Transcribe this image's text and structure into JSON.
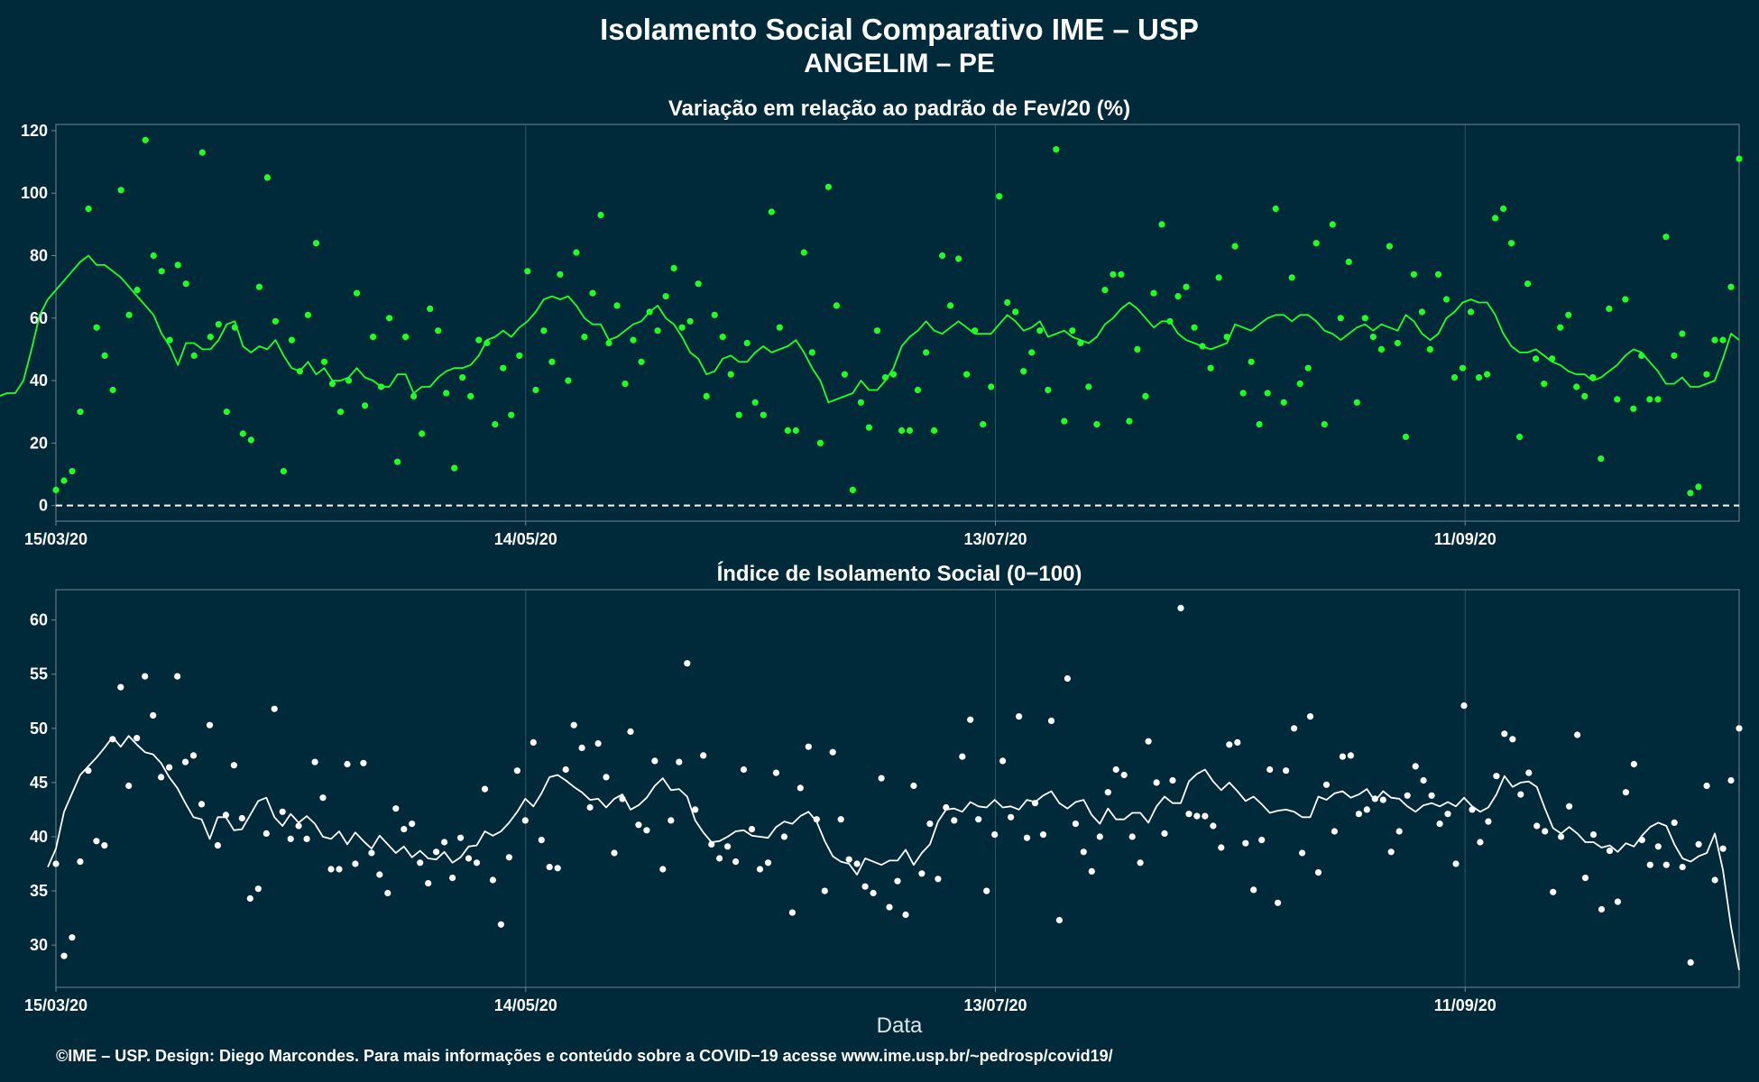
{
  "title": "Isolamento Social Comparativo IME – USP",
  "subtitle": "ANGELIM – PE",
  "xlabel": "Data",
  "credit": "©IME – USP. Design: Diego Marcondes. Para mais informações e conteúdo sobre a COVID−19 acesse www.ime.usp.br/~pedrosp/covid19/",
  "colors": {
    "background": "#00293a",
    "panel_border": "#6f8893",
    "grid": "#2f5566",
    "top_series": "#22ff22",
    "bottom_series": "#ffffff"
  },
  "chart_data": [
    {
      "type": "scatter",
      "title": "Variação em relação ao padrão de Fev/20 (%)",
      "x_type": "date",
      "x_range": [
        "2020-03-15",
        "2020-10-16"
      ],
      "x_ticks": [
        "2020-03-15",
        "2020-05-14",
        "2020-07-13",
        "2020-09-11"
      ],
      "x_tick_labels": [
        "15/03/20",
        "14/05/20",
        "13/07/20",
        "11/09/20"
      ],
      "ylim": [
        -5,
        122
      ],
      "y_ticks": [
        0,
        20,
        40,
        60,
        80,
        100,
        120
      ],
      "reference_line": 0,
      "grid": true,
      "series": [
        {
          "type": "points",
          "values": [
            5,
            8,
            11,
            30,
            95,
            57,
            48,
            37,
            101,
            61,
            69,
            117,
            80,
            75,
            53,
            77,
            71,
            48,
            113,
            54,
            58,
            30,
            57,
            23,
            21,
            70,
            105,
            59,
            11,
            53,
            43,
            61,
            84,
            46,
            39,
            30,
            40,
            68,
            32,
            54,
            38,
            60,
            14,
            54,
            35,
            23,
            63,
            56,
            36,
            12,
            41,
            35,
            53,
            52,
            26,
            44,
            29,
            48,
            75,
            37,
            56,
            46,
            74,
            40,
            81,
            54,
            68,
            93,
            52,
            64,
            39,
            53,
            46,
            62,
            56,
            67,
            76,
            57,
            59,
            71,
            35,
            61,
            54,
            42,
            29,
            52,
            33,
            29,
            94,
            57,
            24,
            24,
            81,
            49,
            20,
            102,
            64,
            42,
            5,
            33,
            25,
            56,
            41,
            42,
            24,
            24,
            37,
            49,
            24,
            80,
            64,
            79,
            42,
            56,
            26,
            38,
            99,
            65,
            62,
            43,
            49,
            56,
            37,
            114,
            27,
            56,
            52,
            38,
            26,
            69,
            74,
            74,
            27,
            50,
            35,
            68,
            90,
            59,
            67,
            70,
            57,
            51,
            44,
            73,
            54,
            83,
            36,
            46,
            26,
            36,
            95,
            33,
            73,
            39,
            44,
            84,
            26,
            90,
            60,
            78,
            33,
            60,
            54,
            50,
            83,
            52,
            22,
            74,
            62,
            50,
            74,
            66,
            41,
            44,
            62,
            41,
            42,
            92,
            95,
            84,
            22,
            71,
            47,
            39,
            47,
            57,
            61,
            38,
            35,
            41,
            15,
            63,
            34,
            66,
            31,
            48,
            34,
            34,
            86,
            48,
            55,
            4,
            6,
            42,
            53,
            53,
            70,
            111
          ]
        },
        {
          "type": "line",
          "values": [
            27,
            35,
            36,
            36,
            40,
            50,
            61,
            66,
            69,
            72,
            75,
            78,
            80,
            77,
            77,
            75,
            73,
            70,
            67,
            64,
            61,
            55,
            51,
            45,
            52,
            52,
            50,
            50,
            53,
            58,
            59,
            51,
            49,
            51,
            50,
            53,
            48,
            44,
            43,
            46,
            42,
            44,
            40,
            40,
            41,
            44,
            41,
            40,
            38,
            38,
            42,
            42,
            36,
            38,
            38,
            41,
            43,
            44,
            44,
            45,
            48,
            53,
            54,
            56,
            54,
            57,
            59,
            62,
            66,
            67,
            66,
            67,
            64,
            60,
            58,
            58,
            53,
            54,
            56,
            58,
            59,
            62,
            64,
            60,
            58,
            54,
            49,
            47,
            42,
            43,
            47,
            48,
            46,
            46,
            49,
            51,
            49,
            50,
            51,
            53,
            49,
            44,
            40,
            33,
            34,
            35,
            36,
            40,
            37,
            37,
            40,
            44,
            51,
            54,
            56,
            59,
            56,
            55,
            57,
            59,
            57,
            55,
            55,
            55,
            58,
            61,
            59,
            56,
            57,
            59,
            54,
            55,
            56,
            54,
            53,
            52,
            54,
            58,
            60,
            63,
            65,
            63,
            60,
            57,
            59,
            59,
            55,
            53,
            52,
            51,
            50,
            51,
            52,
            58,
            57,
            56,
            58,
            60,
            61,
            61,
            59,
            61,
            61,
            59,
            56,
            55,
            53,
            55,
            57,
            58,
            56,
            58,
            57,
            56,
            61,
            59,
            55,
            53,
            55,
            60,
            62,
            65,
            66,
            65,
            65,
            61,
            55,
            51,
            49,
            49,
            50,
            48,
            46,
            45,
            43,
            42,
            42,
            40,
            41,
            43,
            45,
            48,
            50,
            49,
            46,
            43,
            39,
            39,
            41,
            38,
            38,
            39,
            40,
            47,
            55,
            53
          ]
        }
      ]
    },
    {
      "type": "scatter",
      "title": "Índice de Isolamento Social (0−100)",
      "x_type": "date",
      "x_range": [
        "2020-03-15",
        "2020-10-16"
      ],
      "x_ticks": [
        "2020-03-15",
        "2020-05-14",
        "2020-07-13",
        "2020-09-11"
      ],
      "x_tick_labels": [
        "15/03/20",
        "14/05/20",
        "13/07/20",
        "11/09/20"
      ],
      "ylim": [
        26.1,
        62.8
      ],
      "y_ticks": [
        30,
        35,
        40,
        45,
        50,
        55,
        60
      ],
      "xlabel": "Data",
      "grid": true,
      "series": [
        {
          "type": "points",
          "values": [
            37.5,
            29.0,
            30.7,
            37.7,
            46.1,
            39.6,
            39.2,
            49.0,
            53.8,
            44.7,
            49.1,
            54.8,
            51.2,
            45.5,
            46.4,
            54.8,
            46.9,
            47.5,
            43.0,
            50.3,
            39.2,
            42.0,
            46.6,
            41.7,
            34.3,
            35.2,
            40.3,
            51.8,
            42.3,
            39.8,
            41.0,
            39.8,
            46.9,
            43.6,
            37.0,
            37.0,
            46.7,
            37.5,
            46.8,
            38.5,
            36.5,
            34.8,
            42.6,
            40.7,
            41.2,
            37.6,
            35.7,
            38.6,
            39.5,
            36.2,
            39.9,
            38.0,
            37.6,
            44.4,
            36.0,
            31.9,
            38.1,
            46.1,
            41.5,
            48.7,
            39.7,
            37.2,
            37.1,
            46.2,
            50.3,
            48.2,
            42.7,
            48.6,
            45.5,
            38.5,
            43.5,
            49.7,
            41.1,
            40.6,
            47.0,
            37.0,
            41.5,
            46.9,
            56.0,
            42.5,
            47.5,
            39.3,
            38.0,
            39.1,
            37.7,
            46.2,
            40.7,
            37.0,
            37.6,
            45.9,
            40.0,
            33.0,
            44.5,
            48.3,
            41.6,
            35.0,
            47.8,
            41.6,
            37.9,
            37.5,
            35.4,
            34.8,
            45.4,
            33.5,
            35.9,
            32.8,
            44.7,
            36.6,
            41.2,
            36.1,
            42.7,
            41.5,
            47.4,
            50.8,
            41.6,
            35.0,
            40.2,
            47.0,
            41.8,
            51.1,
            39.9,
            43.1,
            40.2,
            50.7,
            32.3,
            54.6,
            41.2,
            38.6,
            36.8,
            40.0,
            44.1,
            46.2,
            45.7,
            40.0,
            37.6,
            48.8,
            45.0,
            40.3,
            45.2,
            61.1,
            42.1,
            41.9,
            41.9,
            41.0,
            39.0,
            48.5,
            48.7,
            39.4,
            35.1,
            39.7,
            46.2,
            33.9,
            46.1,
            50.0,
            38.5,
            51.1,
            36.7,
            44.8,
            40.5,
            47.4,
            47.5,
            42.1,
            42.5,
            43.5,
            43.4,
            38.6,
            40.5,
            43.8,
            46.5,
            45.2,
            43.8,
            41.2,
            42.1,
            37.5,
            52.1,
            42.5,
            39.5,
            41.4,
            45.6,
            49.5,
            49.0,
            43.9,
            45.9,
            41.0,
            40.5,
            34.9,
            40.0,
            42.8,
            49.4,
            36.2,
            40.2,
            33.3,
            38.7,
            34.0,
            44.1,
            46.7,
            39.7,
            37.4,
            39.1,
            37.4,
            41.3,
            37.2,
            28.4,
            39.3,
            44.7,
            36.0,
            38.9,
            45.2,
            50.0
          ]
        },
        {
          "type": "line",
          "values": [
            37.2,
            38.9,
            42.3,
            44.0,
            45.7,
            46.5,
            47.3,
            48.2,
            49.2,
            48.3,
            49.3,
            48.5,
            47.8,
            47.6,
            46.8,
            45.5,
            44.5,
            43.1,
            41.8,
            41.6,
            39.8,
            41.8,
            41.8,
            40.6,
            40.7,
            42.0,
            43.3,
            43.6,
            41.8,
            41.0,
            42.1,
            41.3,
            41.9,
            41.2,
            40.0,
            39.8,
            40.5,
            39.3,
            40.4,
            39.6,
            38.9,
            40.1,
            39.3,
            38.5,
            39.1,
            38.1,
            38.7,
            38.0,
            37.9,
            38.6,
            37.6,
            38.1,
            39.1,
            39.2,
            40.5,
            40.1,
            40.5,
            41.3,
            42.3,
            43.5,
            42.8,
            44.0,
            45.5,
            45.7,
            45.2,
            44.6,
            44.1,
            43.4,
            43.5,
            42.7,
            43.5,
            43.9,
            42.5,
            42.9,
            43.6,
            44.7,
            45.4,
            44.3,
            44.4,
            43.7,
            41.5,
            40.4,
            39.5,
            39.6,
            40.0,
            40.5,
            40.6,
            40.1,
            40.0,
            39.9,
            40.9,
            41.4,
            41.2,
            41.9,
            42.3,
            41.4,
            39.6,
            38.2,
            37.7,
            37.5,
            36.5,
            38.0,
            37.7,
            37.4,
            37.8,
            37.8,
            38.8,
            37.4,
            38.5,
            39.3,
            41.4,
            42.5,
            42.6,
            42.3,
            43.2,
            42.8,
            42.7,
            43.4,
            42.7,
            42.8,
            42.5,
            43.4,
            43.2,
            43.8,
            44.2,
            43.1,
            42.6,
            43.2,
            43.4,
            42.0,
            41.2,
            42.6,
            41.6,
            41.6,
            42.2,
            42.2,
            41.3,
            42.8,
            43.7,
            43.1,
            43.1,
            45.1,
            45.8,
            46.2,
            45.1,
            44.3,
            45.0,
            44.2,
            43.3,
            43.7,
            43.0,
            42.2,
            42.4,
            42.5,
            42.3,
            41.8,
            41.8,
            43.7,
            43.4,
            44.0,
            44.2,
            43.6,
            43.9,
            44.4,
            43.3,
            44.2,
            43.6,
            43.5,
            42.8,
            42.3,
            42.9,
            43.1,
            42.8,
            43.2,
            42.8,
            43.6,
            42.8,
            42.3,
            42.7,
            43.9,
            45.6,
            44.6,
            45.0,
            45.1,
            44.6,
            42.6,
            40.8,
            40.3,
            40.9,
            40.3,
            39.5,
            39.5,
            39.0,
            39.2,
            38.6,
            39.4,
            39.1,
            40.1,
            40.9,
            41.3,
            41.0,
            39.3,
            38.0,
            37.7,
            38.2,
            38.5,
            40.3,
            36.9,
            31.7,
            27.7
          ]
        }
      ]
    }
  ]
}
